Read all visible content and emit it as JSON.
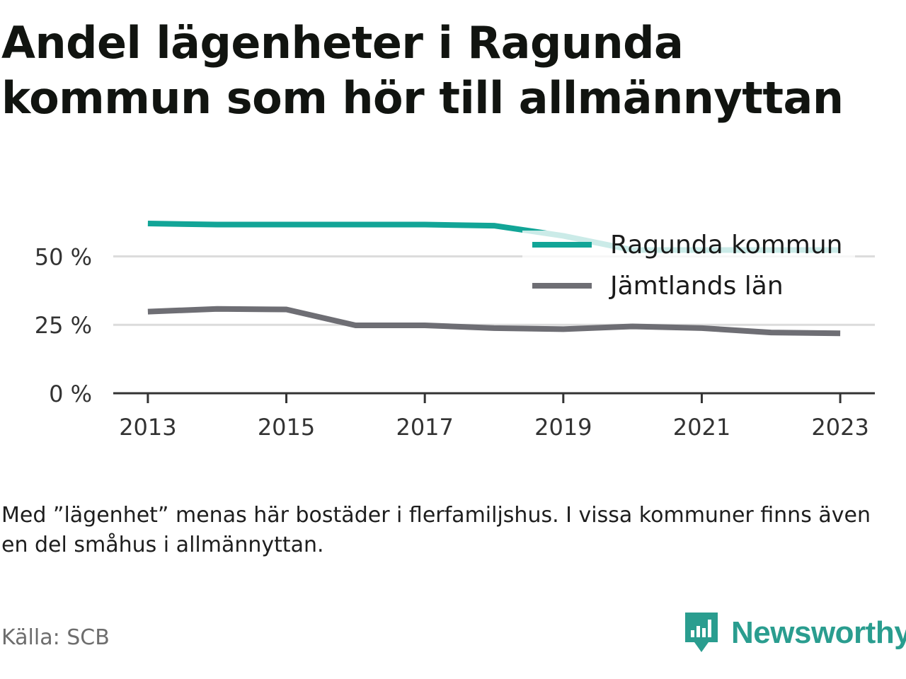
{
  "title": "Andel lägenheter i Ragunda kommun som hör till allmännyttan",
  "note": "Med ”lägenhet” menas här bostäder i flerfamiljshus. I vissa kommuner finns även en del småhus i allmännyttan.",
  "source": "Källa: SCB",
  "brand": {
    "name": "Newsworthy",
    "icon": "newsworthy-logo-icon",
    "color": "#2a9d8f"
  },
  "chart_data": {
    "type": "line",
    "x": [
      2013,
      2014,
      2015,
      2016,
      2017,
      2018,
      2019,
      2020,
      2021,
      2022,
      2023
    ],
    "x_ticks": [
      "2013",
      "2015",
      "2017",
      "2019",
      "2021",
      "2023"
    ],
    "y_ticks": [
      "0 %",
      "25 %",
      "50 %"
    ],
    "y_tick_values": [
      0,
      25,
      50
    ],
    "ylim": [
      0,
      62
    ],
    "xlim": [
      2012.5,
      2023.5
    ],
    "grid": true,
    "legend_position": "top-right",
    "series": [
      {
        "name": "Ragunda kommun",
        "color": "#12a597",
        "values": [
          62.0,
          61.6,
          61.6,
          61.6,
          61.6,
          61.2,
          57.5,
          52.3,
          52.3,
          52.3,
          52.3
        ]
      },
      {
        "name": "Jämtlands län",
        "color": "#6e6e74",
        "values": [
          29.8,
          30.8,
          30.6,
          24.8,
          24.8,
          23.8,
          23.4,
          24.4,
          23.8,
          22.2,
          21.9
        ]
      }
    ]
  }
}
